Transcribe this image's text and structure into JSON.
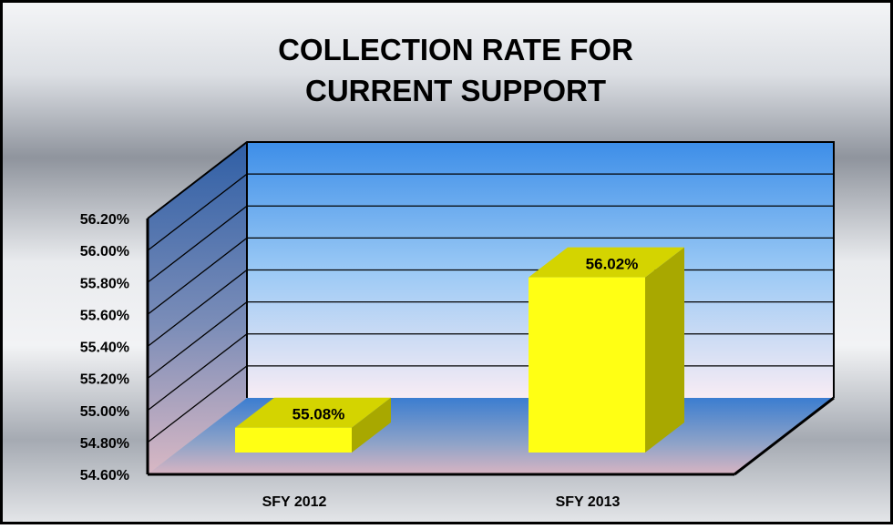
{
  "chart_data": {
    "type": "bar",
    "title": "COLLECTION RATE FOR CURRENT SUPPORT",
    "title_lines": [
      "COLLECTION RATE FOR",
      "CURRENT SUPPORT"
    ],
    "categories": [
      "SFY 2012",
      "SFY 2013"
    ],
    "values": [
      55.08,
      56.02
    ],
    "data_labels": [
      "55.08%",
      "56.02%"
    ],
    "ylim": [
      54.6,
      56.2
    ],
    "y_ticks": [
      54.6,
      54.8,
      55.0,
      55.2,
      55.4,
      55.6,
      55.8,
      56.0,
      56.2
    ],
    "y_tick_labels": [
      "54.60%",
      "54.80%",
      "55.00%",
      "55.20%",
      "55.40%",
      "55.60%",
      "55.80%",
      "56.00%",
      "56.20%"
    ],
    "xlabel": "",
    "ylabel": "",
    "grid": true,
    "three_d": true,
    "bar_color": "#ffff14",
    "legend": "none"
  }
}
